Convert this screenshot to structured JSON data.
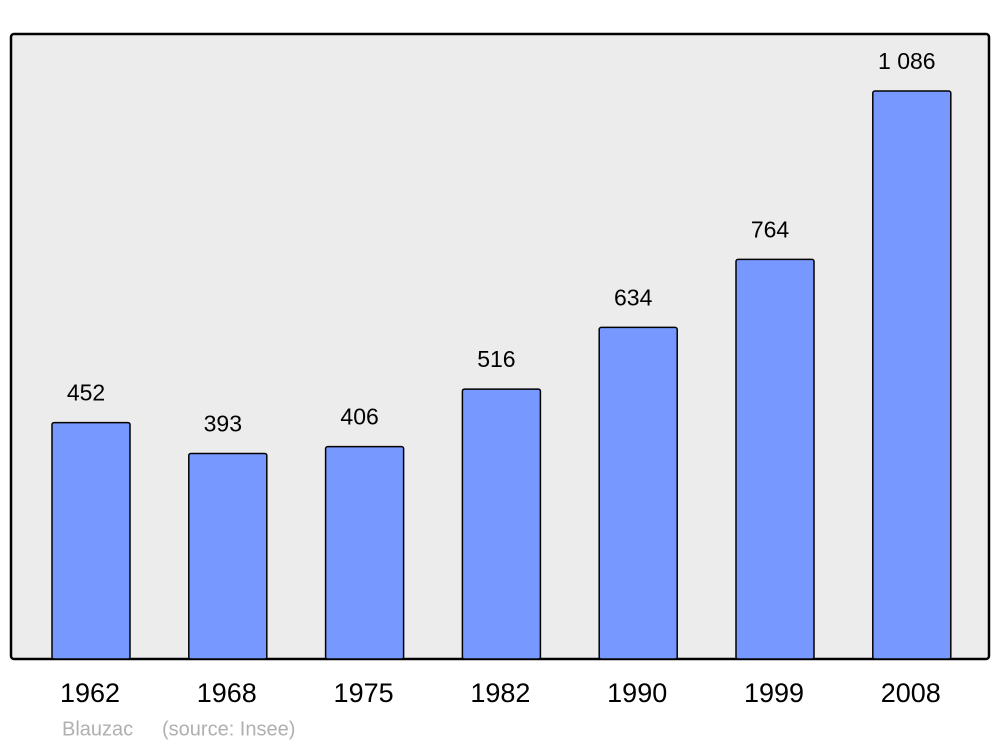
{
  "chart_data": {
    "type": "bar",
    "categories": [
      "1962",
      "1968",
      "1975",
      "1982",
      "1990",
      "1999",
      "2008"
    ],
    "values": [
      452,
      393,
      406,
      516,
      634,
      764,
      1086
    ],
    "value_labels": [
      "452",
      "393",
      "406",
      "516",
      "634",
      "764",
      "1 086"
    ],
    "color": "#7799ff",
    "ylim": [
      0,
      1195
    ],
    "place": "Blauzac",
    "source": "(source: Insee)"
  }
}
